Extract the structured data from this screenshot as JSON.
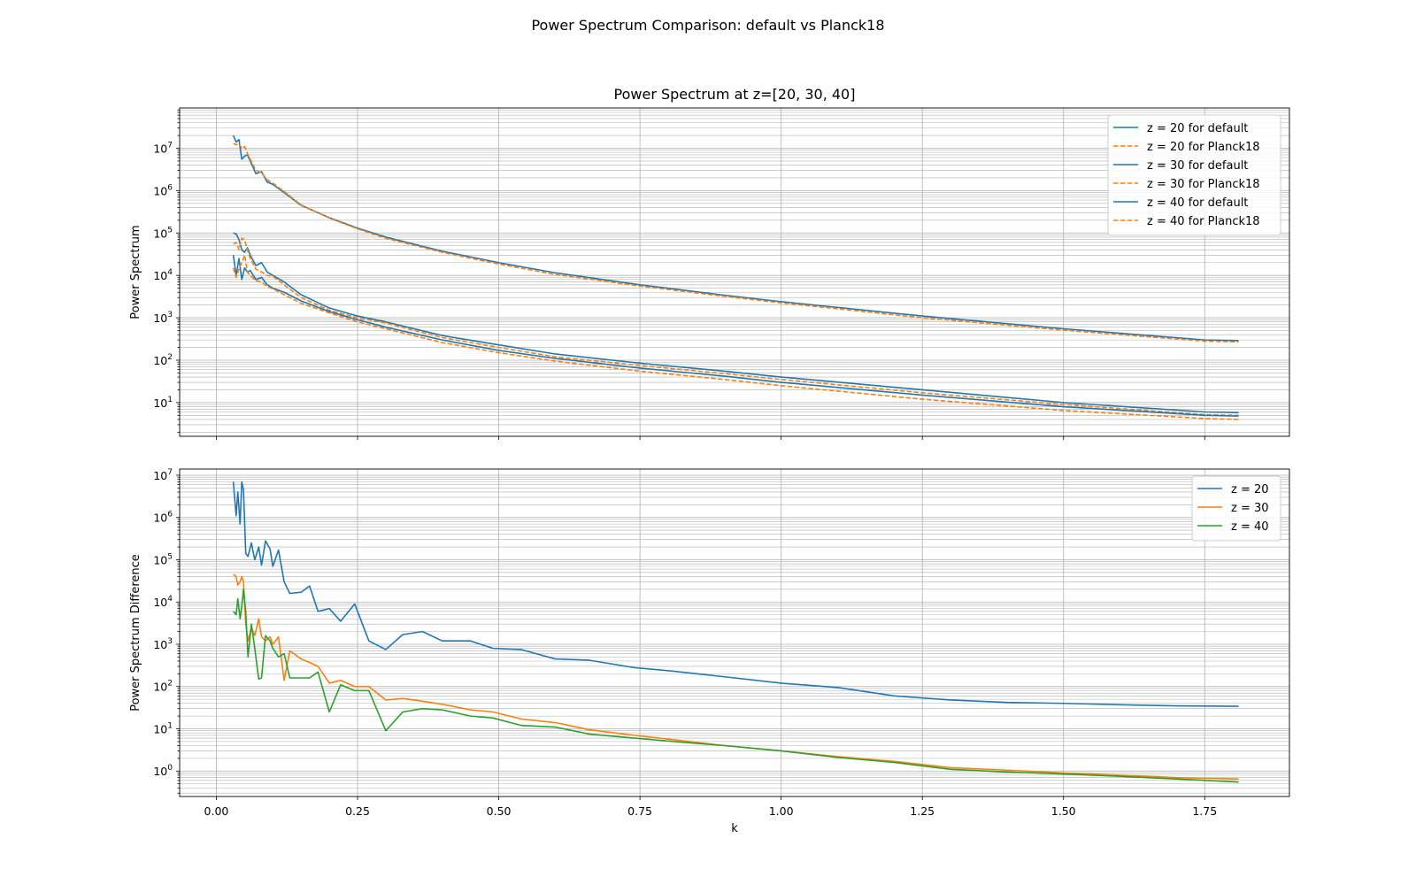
{
  "figure": {
    "suptitle": "Power Spectrum Comparison: default vs Planck18"
  },
  "chart_data": [
    {
      "type": "line",
      "title": "Power Spectrum at z=[20, 30, 40]",
      "xlabel": "",
      "ylabel": "Power Spectrum",
      "xscale": "linear",
      "yscale": "log",
      "xlim": [
        -0.065,
        1.9
      ],
      "ylim": [
        1.6,
        89000000.0
      ],
      "xticks": [
        "0.00",
        "0.25",
        "0.50",
        "0.75",
        "1.00",
        "1.25",
        "1.50",
        "1.75"
      ],
      "ytick_labels": [
        {
          "value": 10,
          "base": "10",
          "exp": "1"
        },
        {
          "value": 100,
          "base": "10",
          "exp": "2"
        },
        {
          "value": 1000,
          "base": "10",
          "exp": "3"
        },
        {
          "value": 10000,
          "base": "10",
          "exp": "4"
        },
        {
          "value": 100000,
          "base": "10",
          "exp": "5"
        },
        {
          "value": 1000000,
          "base": "10",
          "exp": "6"
        },
        {
          "value": 10000000,
          "base": "10",
          "exp": "7"
        }
      ],
      "grid": true,
      "legend_position": "top-right",
      "x": [
        0.03,
        0.035,
        0.04,
        0.045,
        0.05,
        0.055,
        0.06,
        0.07,
        0.08,
        0.09,
        0.1,
        0.12,
        0.15,
        0.2,
        0.25,
        0.3,
        0.4,
        0.5,
        0.6,
        0.75,
        0.9,
        1.0,
        1.25,
        1.5,
        1.75,
        1.81
      ],
      "series": [
        {
          "name": "z = 20 for default",
          "color": "#1f77b4",
          "style": "solid",
          "values": [
            20000000,
            14000000,
            16000000,
            5500000,
            6500000,
            7000000,
            5000000,
            2500000,
            2800000,
            1600000,
            1400000,
            900000,
            450000,
            230000,
            130000,
            80000,
            37000,
            20000,
            11500,
            6000,
            3400,
            2400,
            1100,
            550,
            300,
            290
          ]
        },
        {
          "name": "z = 20 for Planck18",
          "color": "#ff7f0e",
          "style": "dashed",
          "values": [
            13000000,
            12000000,
            13000000,
            10000000,
            11000000,
            7500000,
            5500000,
            3000000,
            2600000,
            1800000,
            1500000,
            950000,
            460000,
            225000,
            125000,
            75000,
            35000,
            18500,
            10500,
            5600,
            3200,
            2250,
            1000,
            510,
            280,
            270
          ]
        },
        {
          "name": "z = 30 for default",
          "color": "#1f77b4",
          "style": "solid",
          "values": [
            100000,
            95000,
            70000,
            40000,
            35000,
            45000,
            30000,
            17000,
            20000,
            12000,
            10000,
            7000,
            3500,
            1700,
            1100,
            800,
            380,
            230,
            140,
            85,
            55,
            40,
            20,
            10,
            6,
            5.8
          ]
        },
        {
          "name": "z = 30 for Planck18",
          "color": "#ff7f0e",
          "style": "dashed",
          "values": [
            55000,
            60000,
            40000,
            75000,
            70000,
            40000,
            25000,
            14000,
            12000,
            10000,
            9500,
            6000,
            3000,
            1500,
            1000,
            750,
            340,
            200,
            120,
            75,
            48,
            35,
            17,
            9,
            5.2,
            5
          ]
        },
        {
          "name": "z = 40 for default",
          "color": "#1f77b4",
          "style": "solid",
          "values": [
            30000,
            10000,
            25000,
            8000,
            15000,
            12000,
            13000,
            8000,
            9000,
            6000,
            5000,
            4000,
            2500,
            1400,
            900,
            600,
            300,
            170,
            110,
            65,
            42,
            30,
            15,
            8,
            5,
            4.8
          ]
        },
        {
          "name": "z = 40 for Planck18",
          "color": "#ff7f0e",
          "style": "dashed",
          "values": [
            15000,
            9000,
            14000,
            20000,
            30000,
            12000,
            10000,
            7500,
            7000,
            5500,
            4800,
            3500,
            2200,
            1300,
            800,
            550,
            260,
            150,
            95,
            55,
            35,
            25,
            12,
            6.5,
            4.2,
            4
          ]
        }
      ]
    },
    {
      "type": "line",
      "title": "",
      "xlabel": "k",
      "ylabel": "Power Spectrum Difference",
      "xscale": "linear",
      "yscale": "log",
      "xlim": [
        -0.065,
        1.9
      ],
      "ylim": [
        0.25,
        14000000.0
      ],
      "xticks": [
        "0.00",
        "0.25",
        "0.50",
        "0.75",
        "1.00",
        "1.25",
        "1.50",
        "1.75"
      ],
      "ytick_labels": [
        {
          "value": 1,
          "base": "10",
          "exp": "0"
        },
        {
          "value": 10,
          "base": "10",
          "exp": "1"
        },
        {
          "value": 100,
          "base": "10",
          "exp": "2"
        },
        {
          "value": 1000,
          "base": "10",
          "exp": "3"
        },
        {
          "value": 10000,
          "base": "10",
          "exp": "4"
        },
        {
          "value": 100000,
          "base": "10",
          "exp": "5"
        },
        {
          "value": 1000000,
          "base": "10",
          "exp": "6"
        },
        {
          "value": 10000000,
          "base": "10",
          "exp": "7"
        }
      ],
      "grid": true,
      "legend_position": "top-right",
      "series": [
        {
          "name": "z = 20",
          "color": "#1f77b4",
          "x": [
            0.03,
            0.035,
            0.038,
            0.042,
            0.045,
            0.048,
            0.052,
            0.056,
            0.062,
            0.068,
            0.075,
            0.08,
            0.087,
            0.095,
            0.1,
            0.11,
            0.12,
            0.13,
            0.15,
            0.165,
            0.18,
            0.2,
            0.22,
            0.245,
            0.27,
            0.3,
            0.33,
            0.365,
            0.4,
            0.45,
            0.49,
            0.54,
            0.6,
            0.66,
            0.74,
            0.81,
            0.9,
            1.0,
            1.1,
            1.2,
            1.3,
            1.4,
            1.5,
            1.6,
            1.7,
            1.81
          ],
          "values": [
            7000000,
            1100000,
            4000000,
            700000,
            7000000,
            4500000,
            140000,
            120000,
            250000,
            100000,
            200000,
            75000,
            280000,
            180000,
            70000,
            170000,
            30000,
            16000,
            17000,
            24000,
            6000,
            7000,
            3500,
            9000,
            1200,
            750,
            1700,
            2000,
            1200,
            1200,
            800,
            750,
            450,
            420,
            280,
            230,
            170,
            120,
            95,
            60,
            48,
            42,
            40,
            37,
            35,
            34
          ]
        },
        {
          "name": "z = 30",
          "color": "#ff7f0e",
          "x": [
            0.03,
            0.035,
            0.038,
            0.042,
            0.045,
            0.048,
            0.052,
            0.056,
            0.062,
            0.068,
            0.075,
            0.08,
            0.087,
            0.095,
            0.1,
            0.11,
            0.12,
            0.13,
            0.15,
            0.165,
            0.18,
            0.2,
            0.22,
            0.245,
            0.27,
            0.3,
            0.33,
            0.365,
            0.4,
            0.45,
            0.49,
            0.54,
            0.6,
            0.66,
            0.74,
            0.81,
            0.9,
            1.0,
            1.1,
            1.2,
            1.3,
            1.4,
            1.5,
            1.6,
            1.7,
            1.81
          ],
          "values": [
            45000,
            40000,
            25000,
            30000,
            40000,
            30000,
            3000,
            1200,
            2500,
            1600,
            4000,
            1500,
            1200,
            1500,
            1000,
            1500,
            140,
            700,
            450,
            370,
            300,
            120,
            140,
            100,
            100,
            48,
            52,
            45,
            38,
            28,
            25,
            17,
            14,
            9.5,
            7,
            5.5,
            4,
            3,
            2.2,
            1.7,
            1.2,
            1.05,
            0.9,
            0.8,
            0.7,
            0.65
          ]
        },
        {
          "name": "z = 40",
          "color": "#2ca02c",
          "x": [
            0.03,
            0.035,
            0.038,
            0.042,
            0.045,
            0.048,
            0.052,
            0.056,
            0.062,
            0.068,
            0.075,
            0.08,
            0.087,
            0.095,
            0.1,
            0.11,
            0.12,
            0.13,
            0.15,
            0.165,
            0.18,
            0.2,
            0.22,
            0.245,
            0.27,
            0.3,
            0.33,
            0.365,
            0.4,
            0.45,
            0.49,
            0.54,
            0.6,
            0.66,
            0.74,
            0.81,
            0.9,
            1.0,
            1.1,
            1.2,
            1.3,
            1.4,
            1.5,
            1.6,
            1.7,
            1.81
          ],
          "values": [
            6000,
            5000,
            12000,
            4000,
            8000,
            20000,
            6000,
            500,
            3000,
            800,
            150,
            160,
            1600,
            1200,
            800,
            500,
            600,
            160,
            160,
            160,
            220,
            25,
            110,
            80,
            80,
            9,
            25,
            30,
            28,
            20,
            18,
            12,
            11,
            7.5,
            6,
            5,
            4,
            3,
            2.1,
            1.6,
            1.1,
            0.95,
            0.85,
            0.75,
            0.65,
            0.55
          ]
        }
      ]
    }
  ]
}
